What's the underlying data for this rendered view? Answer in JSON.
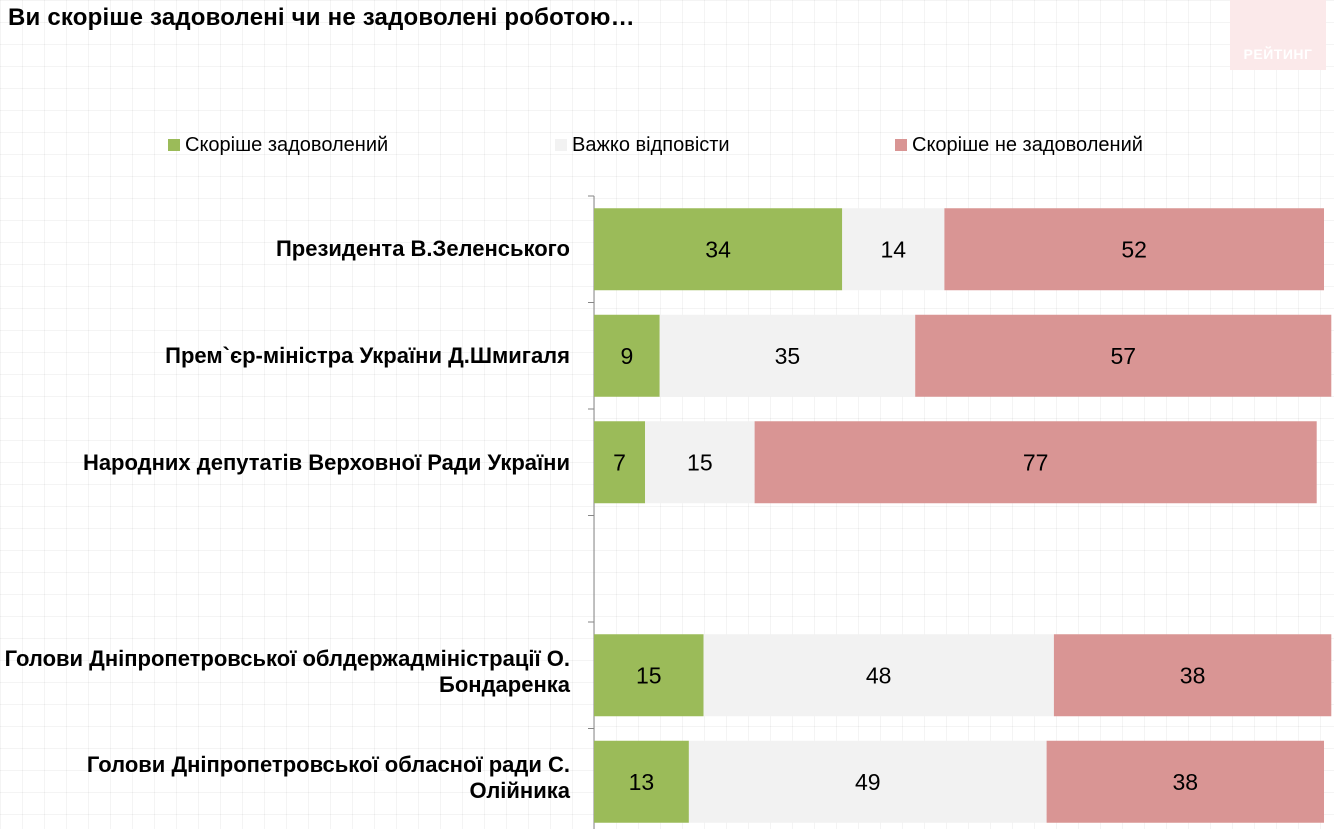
{
  "title": "Ви скоріше задоволені чи не задоволені роботою…",
  "logo": {
    "text": "РЕЙТИНГ"
  },
  "colors": {
    "satisfied": "#9bbb59",
    "hard_to_say": "#f2f2f2",
    "not_satisfied": "#d99594",
    "logo_bg": "#fbe9ea"
  },
  "legend": [
    {
      "label": "Скоріше задоволений",
      "color": "#9bbb59"
    },
    {
      "label": "Важко відповісти",
      "color": "#f2f2f2"
    },
    {
      "label": "Скоріше не задоволений",
      "color": "#d99594"
    }
  ],
  "chart_data": {
    "type": "bar",
    "orientation": "horizontal",
    "stacked": true,
    "title": "Ви скоріше задоволені чи не задоволені роботою…",
    "xlim": [
      0,
      100
    ],
    "grid": false,
    "legend_position": "top",
    "categories": [
      "Президента В.Зеленського",
      "Прем`єр-міністра України Д.Шмигаля",
      "Народних депутатів Верховної Ради України",
      "",
      "Голови Дніпропетровської облдержадміністрації О. Бондаренка",
      "Голови Дніпропетровської обласної ради С. Олійника"
    ],
    "series": [
      {
        "name": "Скоріше задоволений",
        "color": "#9bbb59",
        "values": [
          34,
          9,
          7,
          null,
          15,
          13
        ]
      },
      {
        "name": "Важко відповісти",
        "color": "#f2f2f2",
        "values": [
          14,
          35,
          15,
          null,
          48,
          49
        ]
      },
      {
        "name": "Скоріше не задоволений",
        "color": "#d99594",
        "values": [
          52,
          57,
          77,
          null,
          38,
          38
        ]
      }
    ]
  }
}
